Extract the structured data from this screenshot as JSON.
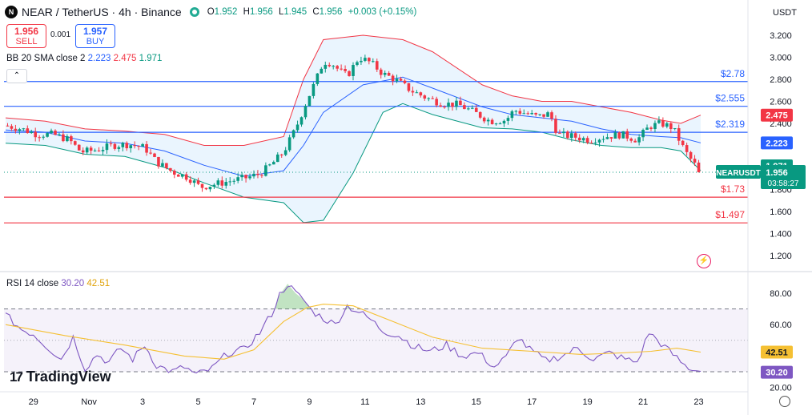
{
  "header": {
    "logo_glyph": "N",
    "symbol": "NEAR / TetherUS · 4h · Binance",
    "ohlc": [
      {
        "k": "O",
        "v": "1.952"
      },
      {
        "k": "H",
        "v": "1.956"
      },
      {
        "k": "L",
        "v": "1.945"
      },
      {
        "k": "C",
        "v": "1.956"
      }
    ],
    "change": "+0.003 (+0.15%)"
  },
  "trade": {
    "sell_price": "1.956",
    "sell_label": "SELL",
    "buy_price": "1.957",
    "buy_label": "BUY",
    "spread": "0.001"
  },
  "bb_legend": {
    "name": "BB 20 SMA close 2",
    "basis": "2.223",
    "upper": "2.475",
    "lower": "1.971"
  },
  "collapse_glyph": "⌃",
  "rsi_legend": {
    "name": "RSI 14 close",
    "rsi": "30.20",
    "ma": "42.51"
  },
  "branding": {
    "mark": "17",
    "name": "TradingView"
  },
  "currency": "USDT",
  "icons": {
    "alert": "lightning-icon",
    "settings": "gear-icon",
    "logo": "tradingview-logo-icon",
    "exchange": "near-logo-icon"
  },
  "colors": {
    "up": "#089981",
    "down": "#f23645",
    "bb_basis": "#2962ff",
    "bb_upper": "#f23645",
    "bb_lower": "#089981",
    "bb_fill": "#e3f2fd",
    "rsi": "#7e57c2",
    "rsi_ma": "#f5c033",
    "hline_blue": "#2962ff",
    "hline_red": "#f23645"
  },
  "chart_data": [
    {
      "type": "candlestick",
      "ylim": [
        1.05,
        3.31
      ],
      "y_ticks": [
        "3.200",
        "3.000",
        "2.800",
        "2.600",
        "2.400",
        "2.200",
        "1.800",
        "1.600",
        "1.400",
        "1.200"
      ],
      "x_ticks": [
        "29",
        "Nov",
        "3",
        "5",
        "7",
        "9",
        "11",
        "13",
        "15",
        "17",
        "19",
        "21",
        "23"
      ],
      "x_tick_bar_index": [
        14,
        42,
        69,
        97,
        125,
        153,
        181,
        209,
        237,
        265,
        293,
        321,
        349
      ],
      "horizontal_levels": [
        {
          "value": 2.78,
          "label": "$2.78",
          "color": "blue"
        },
        {
          "value": 2.555,
          "label": "$2.555",
          "color": "blue"
        },
        {
          "value": 2.319,
          "label": "$2.319",
          "color": "blue"
        },
        {
          "value": 1.73,
          "label": "$1.73",
          "color": "red"
        },
        {
          "value": 1.497,
          "label": "$1.497",
          "color": "red"
        }
      ],
      "price_badges": [
        {
          "value": 2.475,
          "label": "2.475",
          "color": "#f23645"
        },
        {
          "value": 2.223,
          "label": "2.223",
          "color": "#2962ff"
        },
        {
          "value": 1.971,
          "label": "1.971",
          "color": "#089981"
        }
      ],
      "last_price": {
        "value": 1.956,
        "label": "1.956",
        "symbol": "NEARUSDT",
        "countdown": "03:58:27"
      },
      "anchors": [
        [
          0,
          2.38
        ],
        [
          8,
          2.35
        ],
        [
          16,
          2.3
        ],
        [
          24,
          2.3
        ],
        [
          32,
          2.25
        ],
        [
          38,
          2.14
        ],
        [
          46,
          2.16
        ],
        [
          54,
          2.2
        ],
        [
          62,
          2.21
        ],
        [
          70,
          2.18
        ],
        [
          76,
          2.05
        ],
        [
          84,
          1.96
        ],
        [
          92,
          1.91
        ],
        [
          98,
          1.82
        ],
        [
          106,
          1.85
        ],
        [
          114,
          1.88
        ],
        [
          122,
          1.91
        ],
        [
          128,
          1.94
        ],
        [
          134,
          2.03
        ],
        [
          140,
          2.14
        ],
        [
          146,
          2.35
        ],
        [
          152,
          2.62
        ],
        [
          156,
          2.78
        ],
        [
          160,
          2.96
        ],
        [
          164,
          2.95
        ],
        [
          168,
          2.88
        ],
        [
          172,
          2.83
        ],
        [
          178,
          3.0
        ],
        [
          184,
          2.95
        ],
        [
          190,
          2.85
        ],
        [
          196,
          2.8
        ],
        [
          204,
          2.7
        ],
        [
          212,
          2.63
        ],
        [
          220,
          2.58
        ],
        [
          228,
          2.57
        ],
        [
          236,
          2.5
        ],
        [
          244,
          2.42
        ],
        [
          252,
          2.43
        ],
        [
          256,
          2.52
        ],
        [
          262,
          2.49
        ],
        [
          268,
          2.46
        ],
        [
          274,
          2.49
        ],
        [
          278,
          2.3
        ],
        [
          286,
          2.28
        ],
        [
          294,
          2.25
        ],
        [
          302,
          2.28
        ],
        [
          310,
          2.3
        ],
        [
          318,
          2.25
        ],
        [
          324,
          2.37
        ],
        [
          330,
          2.4
        ],
        [
          336,
          2.36
        ],
        [
          342,
          2.15
        ],
        [
          346,
          2.05
        ],
        [
          350,
          1.956
        ]
      ],
      "bands": {
        "upper": [
          [
            0,
            2.45
          ],
          [
            20,
            2.42
          ],
          [
            40,
            2.35
          ],
          [
            60,
            2.33
          ],
          [
            80,
            2.3
          ],
          [
            100,
            2.2
          ],
          [
            120,
            2.2
          ],
          [
            140,
            2.28
          ],
          [
            150,
            2.8
          ],
          [
            160,
            3.16
          ],
          [
            180,
            3.2
          ],
          [
            200,
            3.16
          ],
          [
            215,
            3.05
          ],
          [
            240,
            2.75
          ],
          [
            255,
            2.65
          ],
          [
            270,
            2.6
          ],
          [
            285,
            2.6
          ],
          [
            300,
            2.55
          ],
          [
            315,
            2.5
          ],
          [
            330,
            2.43
          ],
          [
            340,
            2.4
          ],
          [
            350,
            2.475
          ]
        ],
        "basis": [
          [
            0,
            2.34
          ],
          [
            20,
            2.32
          ],
          [
            40,
            2.24
          ],
          [
            60,
            2.22
          ],
          [
            80,
            2.15
          ],
          [
            100,
            2.02
          ],
          [
            120,
            1.92
          ],
          [
            140,
            1.97
          ],
          [
            150,
            2.2
          ],
          [
            160,
            2.5
          ],
          [
            180,
            2.75
          ],
          [
            200,
            2.82
          ],
          [
            215,
            2.72
          ],
          [
            240,
            2.55
          ],
          [
            255,
            2.48
          ],
          [
            270,
            2.45
          ],
          [
            285,
            2.42
          ],
          [
            300,
            2.35
          ],
          [
            315,
            2.3
          ],
          [
            330,
            2.28
          ],
          [
            340,
            2.27
          ],
          [
            350,
            2.223
          ]
        ],
        "lower": [
          [
            0,
            2.22
          ],
          [
            20,
            2.2
          ],
          [
            40,
            2.12
          ],
          [
            60,
            2.1
          ],
          [
            80,
            2.0
          ],
          [
            100,
            1.86
          ],
          [
            120,
            1.73
          ],
          [
            140,
            1.68
          ],
          [
            150,
            1.5
          ],
          [
            160,
            1.52
          ],
          [
            175,
            1.95
          ],
          [
            190,
            2.5
          ],
          [
            200,
            2.58
          ],
          [
            215,
            2.48
          ],
          [
            240,
            2.36
          ],
          [
            255,
            2.35
          ],
          [
            270,
            2.32
          ],
          [
            285,
            2.25
          ],
          [
            300,
            2.2
          ],
          [
            315,
            2.18
          ],
          [
            330,
            2.18
          ],
          [
            340,
            2.15
          ],
          [
            350,
            1.971
          ]
        ]
      }
    },
    {
      "type": "line",
      "name": "RSI 14 close",
      "ylim": [
        15,
        95
      ],
      "y_ticks": [
        "80.00",
        "60.00",
        "20.00"
      ],
      "band_levels": [
        70,
        30
      ],
      "mid_level": 50,
      "rsi_badge": {
        "value": 30.2,
        "label": "30.20"
      },
      "ma_badge": {
        "value": 42.51,
        "label": "42.51"
      },
      "rsi": [
        [
          0,
          66
        ],
        [
          8,
          57
        ],
        [
          14,
          54
        ],
        [
          20,
          47
        ],
        [
          28,
          38
        ],
        [
          34,
          52
        ],
        [
          40,
          32
        ],
        [
          46,
          41
        ],
        [
          52,
          36
        ],
        [
          58,
          45
        ],
        [
          64,
          38
        ],
        [
          70,
          47
        ],
        [
          76,
          34
        ],
        [
          84,
          30
        ],
        [
          90,
          33
        ],
        [
          96,
          28
        ],
        [
          104,
          32
        ],
        [
          112,
          42
        ],
        [
          120,
          44
        ],
        [
          128,
          55
        ],
        [
          134,
          67
        ],
        [
          138,
          79
        ],
        [
          142,
          86
        ],
        [
          146,
          80
        ],
        [
          150,
          76
        ],
        [
          154,
          69
        ],
        [
          160,
          64
        ],
        [
          166,
          60
        ],
        [
          172,
          72
        ],
        [
          178,
          68
        ],
        [
          184,
          63
        ],
        [
          190,
          56
        ],
        [
          198,
          53
        ],
        [
          206,
          46
        ],
        [
          214,
          43
        ],
        [
          222,
          47
        ],
        [
          230,
          40
        ],
        [
          238,
          42
        ],
        [
          246,
          33
        ],
        [
          252,
          39
        ],
        [
          258,
          52
        ],
        [
          264,
          44
        ],
        [
          272,
          37
        ],
        [
          280,
          40
        ],
        [
          288,
          45
        ],
        [
          296,
          38
        ],
        [
          304,
          42
        ],
        [
          312,
          38
        ],
        [
          318,
          36
        ],
        [
          324,
          55
        ],
        [
          330,
          48
        ],
        [
          336,
          41
        ],
        [
          342,
          34
        ],
        [
          346,
          31
        ],
        [
          350,
          30.2
        ]
      ],
      "ma": [
        [
          0,
          60
        ],
        [
          30,
          53
        ],
        [
          60,
          47
        ],
        [
          90,
          40
        ],
        [
          110,
          38
        ],
        [
          125,
          44
        ],
        [
          140,
          62
        ],
        [
          152,
          71
        ],
        [
          160,
          73
        ],
        [
          175,
          72
        ],
        [
          195,
          62
        ],
        [
          215,
          52
        ],
        [
          240,
          45
        ],
        [
          265,
          43
        ],
        [
          290,
          41
        ],
        [
          310,
          42
        ],
        [
          325,
          43
        ],
        [
          338,
          45
        ],
        [
          350,
          42.51
        ]
      ]
    }
  ]
}
